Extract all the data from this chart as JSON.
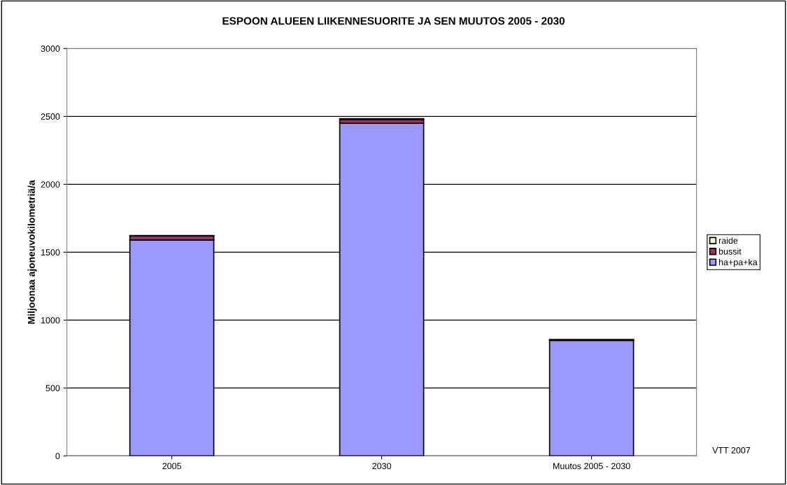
{
  "chart_data": {
    "type": "bar",
    "title": "ESPOON ALUEEN LIIKENNESUORITE JA SEN MUUTOS 2005 - 2030",
    "ylabel": "Miljoonaa ajoneuvokilometriä/a",
    "categories": [
      "2005",
      "2030",
      "Muutos 2005 - 2030"
    ],
    "stacked": true,
    "series": [
      {
        "name": "ha+pa+ka",
        "color": "#9999ff",
        "values": [
          1590,
          2450,
          850
        ]
      },
      {
        "name": "bussit",
        "color": "#993366",
        "values": [
          30,
          25,
          3
        ]
      },
      {
        "name": "raide",
        "color": "#ffffcc",
        "values": [
          3,
          8,
          4
        ]
      }
    ],
    "ylim": [
      0,
      3000
    ],
    "yticks": [
      0,
      500,
      1000,
      1500,
      2000,
      2500,
      3000
    ],
    "grid": "y",
    "legend": "right",
    "annotations": [
      "VTT 2007"
    ]
  }
}
